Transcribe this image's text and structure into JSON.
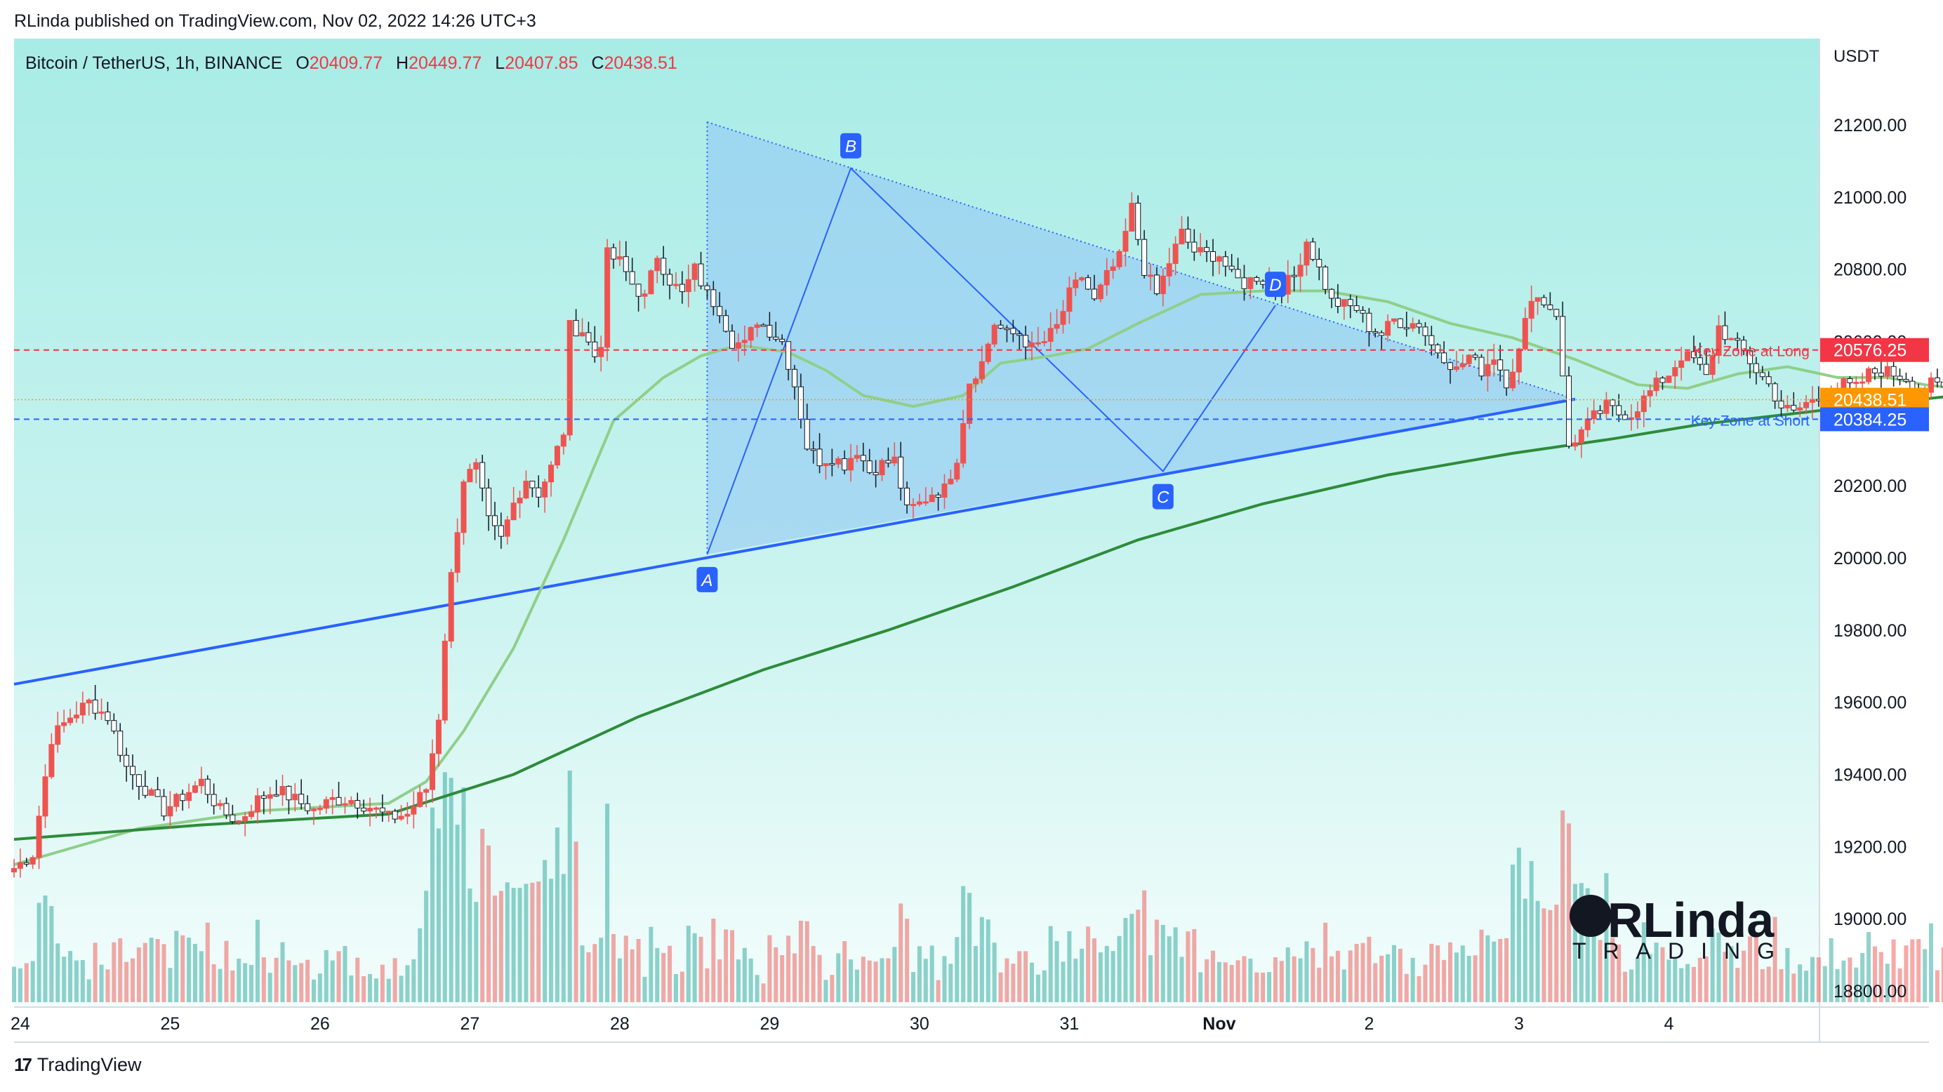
{
  "header": {
    "published": "RLinda published on TradingView.com, Nov 02, 2022 14:26 UTC+3"
  },
  "legend": {
    "symbol": "Bitcoin / TetherUS, 1h, BINANCE",
    "o_label": "O",
    "o_value": "20409.77",
    "h_label": "H",
    "h_value": "20449.77",
    "l_label": "L",
    "l_value": "20407.85",
    "c_label": "C",
    "c_value": "20438.51"
  },
  "footer": {
    "brand": "TradingView"
  },
  "watermark": {
    "text_top": "RLinda",
    "text_bottom": "TRADING"
  },
  "colors": {
    "bull": "#26a69a",
    "bear": "#ef5350",
    "ma_fast": "#8fcf8a",
    "ma_slow": "#2e8b3a",
    "trendline": "#2962ff",
    "triangle_fill": "#90c4f5",
    "long_line": "#f23645",
    "short_line": "#2962ff",
    "last_price": "#ff9800"
  },
  "chart_data": {
    "type": "candlestick",
    "symbol": "Bitcoin / TetherUS",
    "timeframe": "1h",
    "exchange": "BINANCE",
    "y_axis": {
      "unit": "USDT",
      "range": [
        18780,
        21370
      ],
      "ticks": [
        "21200.00",
        "21000.00",
        "20800.00",
        "20600.00",
        "20400.00",
        "20200.00",
        "20000.00",
        "19800.00",
        "19600.00",
        "19400.00",
        "19200.00",
        "19000.00",
        "18800.00"
      ]
    },
    "x_axis": {
      "ticks": [
        "24",
        "25",
        "26",
        "27",
        "28",
        "29",
        "30",
        "31",
        "Nov",
        "2",
        "3",
        "4"
      ]
    },
    "price_levels": [
      {
        "name": "Key Zone at Long",
        "value": 20576.25,
        "label": "20576.25"
      },
      {
        "name": "Key Zone at Short",
        "value": 20384.25,
        "label": "20384.25"
      },
      {
        "name": "last",
        "value": 20438.51,
        "label": "20438.51"
      }
    ],
    "pattern_points": [
      {
        "label": "A",
        "date": "2022-10-28 14:00",
        "price": 20010
      },
      {
        "label": "B",
        "date": "2022-10-29 13:00",
        "price": 21080
      },
      {
        "label": "C",
        "date": "2022-10-31 15:00",
        "price": 20240
      },
      {
        "label": "D",
        "date": "2022-11-01 09:00",
        "price": 20700
      }
    ],
    "triangle_apex": {
      "date": "2022-11-03 09:00",
      "price": 20440
    },
    "lower_trendline": [
      {
        "date": "2022-10-23 23:00",
        "price": 19650
      },
      {
        "date": "2022-11-03 09:00",
        "price": 20440
      }
    ],
    "close_path": [
      [
        0,
        19140
      ],
      [
        3,
        19180
      ],
      [
        6,
        19500
      ],
      [
        9,
        19560
      ],
      [
        12,
        19600
      ],
      [
        15,
        19560
      ],
      [
        18,
        19420
      ],
      [
        21,
        19360
      ],
      [
        24,
        19300
      ],
      [
        27,
        19340
      ],
      [
        30,
        19380
      ],
      [
        33,
        19300
      ],
      [
        36,
        19270
      ],
      [
        39,
        19330
      ],
      [
        42,
        19360
      ],
      [
        45,
        19330
      ],
      [
        48,
        19300
      ],
      [
        51,
        19330
      ],
      [
        54,
        19330
      ],
      [
        57,
        19310
      ],
      [
        60,
        19280
      ],
      [
        63,
        19290
      ],
      [
        66,
        19360
      ],
      [
        68,
        19560
      ],
      [
        69,
        19780
      ],
      [
        70,
        19950
      ],
      [
        72,
        20220
      ],
      [
        74,
        20250
      ],
      [
        76,
        20100
      ],
      [
        78,
        20050
      ],
      [
        80,
        20150
      ],
      [
        82,
        20220
      ],
      [
        84,
        20180
      ],
      [
        86,
        20250
      ],
      [
        88,
        20350
      ],
      [
        89,
        20640
      ],
      [
        91,
        20630
      ],
      [
        93,
        20560
      ],
      [
        94,
        20600
      ],
      [
        95,
        20840
      ],
      [
        97,
        20820
      ],
      [
        99,
        20760
      ],
      [
        101,
        20720
      ],
      [
        103,
        20840
      ],
      [
        105,
        20770
      ],
      [
        107,
        20730
      ],
      [
        109,
        20800
      ],
      [
        111,
        20730
      ],
      [
        113,
        20690
      ],
      [
        115,
        20600
      ],
      [
        117,
        20590
      ],
      [
        119,
        20660
      ],
      [
        121,
        20630
      ],
      [
        123,
        20600
      ],
      [
        125,
        20480
      ],
      [
        127,
        20310
      ],
      [
        129,
        20270
      ],
      [
        131,
        20280
      ],
      [
        133,
        20260
      ],
      [
        135,
        20300
      ],
      [
        137,
        20240
      ],
      [
        139,
        20260
      ],
      [
        141,
        20270
      ],
      [
        143,
        20130
      ],
      [
        145,
        20150
      ],
      [
        147,
        20180
      ],
      [
        149,
        20190
      ],
      [
        151,
        20280
      ],
      [
        153,
        20490
      ],
      [
        155,
        20540
      ],
      [
        157,
        20650
      ],
      [
        159,
        20620
      ],
      [
        161,
        20620
      ],
      [
        163,
        20580
      ],
      [
        165,
        20600
      ],
      [
        167,
        20640
      ],
      [
        169,
        20730
      ],
      [
        171,
        20780
      ],
      [
        173,
        20710
      ],
      [
        175,
        20780
      ],
      [
        177,
        20830
      ],
      [
        179,
        20970
      ],
      [
        181,
        20800
      ],
      [
        183,
        20730
      ],
      [
        185,
        20820
      ],
      [
        187,
        20900
      ],
      [
        189,
        20850
      ],
      [
        191,
        20840
      ],
      [
        193,
        20840
      ],
      [
        195,
        20780
      ],
      [
        197,
        20760
      ],
      [
        199,
        20780
      ],
      [
        201,
        20760
      ],
      [
        203,
        20750
      ],
      [
        205,
        20780
      ],
      [
        207,
        20880
      ],
      [
        209,
        20800
      ],
      [
        211,
        20710
      ],
      [
        213,
        20700
      ],
      [
        215,
        20690
      ],
      [
        217,
        20640
      ],
      [
        219,
        20620
      ],
      [
        221,
        20660
      ],
      [
        223,
        20650
      ],
      [
        225,
        20650
      ],
      [
        227,
        20590
      ],
      [
        229,
        20560
      ],
      [
        231,
        20520
      ],
      [
        233,
        20560
      ],
      [
        235,
        20520
      ],
      [
        237,
        20560
      ],
      [
        239,
        20490
      ],
      [
        241,
        20570
      ],
      [
        243,
        20730
      ],
      [
        245,
        20710
      ],
      [
        247,
        20680
      ],
      [
        249,
        20310
      ],
      [
        251,
        20350
      ],
      [
        253,
        20390
      ],
      [
        255,
        20420
      ],
      [
        257,
        20400
      ],
      [
        259,
        20400
      ],
      [
        261,
        20440
      ],
      [
        263,
        20480
      ],
      [
        265,
        20510
      ],
      [
        267,
        20560
      ],
      [
        269,
        20550
      ],
      [
        271,
        20500
      ],
      [
        273,
        20640
      ],
      [
        275,
        20600
      ],
      [
        277,
        20570
      ],
      [
        279,
        20520
      ],
      [
        281,
        20480
      ],
      [
        283,
        20420
      ],
      [
        285,
        20400
      ],
      [
        287,
        20430
      ],
      [
        289,
        20440
      ],
      [
        291,
        20470
      ],
      [
        293,
        20480
      ],
      [
        295,
        20470
      ],
      [
        297,
        20510
      ],
      [
        299,
        20520
      ],
      [
        301,
        20510
      ],
      [
        303,
        20500
      ],
      [
        305,
        20450
      ],
      [
        307,
        20480
      ],
      [
        309,
        20470
      ],
      [
        311,
        20430
      ]
    ],
    "ma_fast_path": [
      [
        0,
        19150
      ],
      [
        20,
        19250
      ],
      [
        40,
        19300
      ],
      [
        60,
        19320
      ],
      [
        66,
        19380
      ],
      [
        72,
        19520
      ],
      [
        80,
        19750
      ],
      [
        88,
        20050
      ],
      [
        96,
        20380
      ],
      [
        104,
        20500
      ],
      [
        110,
        20560
      ],
      [
        116,
        20590
      ],
      [
        124,
        20570
      ],
      [
        130,
        20520
      ],
      [
        136,
        20450
      ],
      [
        144,
        20420
      ],
      [
        152,
        20450
      ],
      [
        158,
        20540
      ],
      [
        166,
        20560
      ],
      [
        172,
        20580
      ],
      [
        180,
        20650
      ],
      [
        190,
        20730
      ],
      [
        200,
        20740
      ],
      [
        210,
        20740
      ],
      [
        220,
        20710
      ],
      [
        230,
        20650
      ],
      [
        240,
        20610
      ],
      [
        250,
        20550
      ],
      [
        260,
        20480
      ],
      [
        268,
        20470
      ],
      [
        276,
        20510
      ],
      [
        284,
        20530
      ],
      [
        292,
        20500
      ],
      [
        300,
        20500
      ],
      [
        306,
        20480
      ],
      [
        311,
        20470
      ]
    ],
    "ma_slow_path": [
      [
        0,
        19220
      ],
      [
        30,
        19260
      ],
      [
        60,
        19290
      ],
      [
        80,
        19400
      ],
      [
        100,
        19560
      ],
      [
        120,
        19690
      ],
      [
        140,
        19800
      ],
      [
        160,
        19920
      ],
      [
        180,
        20050
      ],
      [
        200,
        20150
      ],
      [
        220,
        20230
      ],
      [
        240,
        20290
      ],
      [
        256,
        20330
      ],
      [
        270,
        20370
      ],
      [
        290,
        20410
      ],
      [
        311,
        20450
      ]
    ]
  }
}
